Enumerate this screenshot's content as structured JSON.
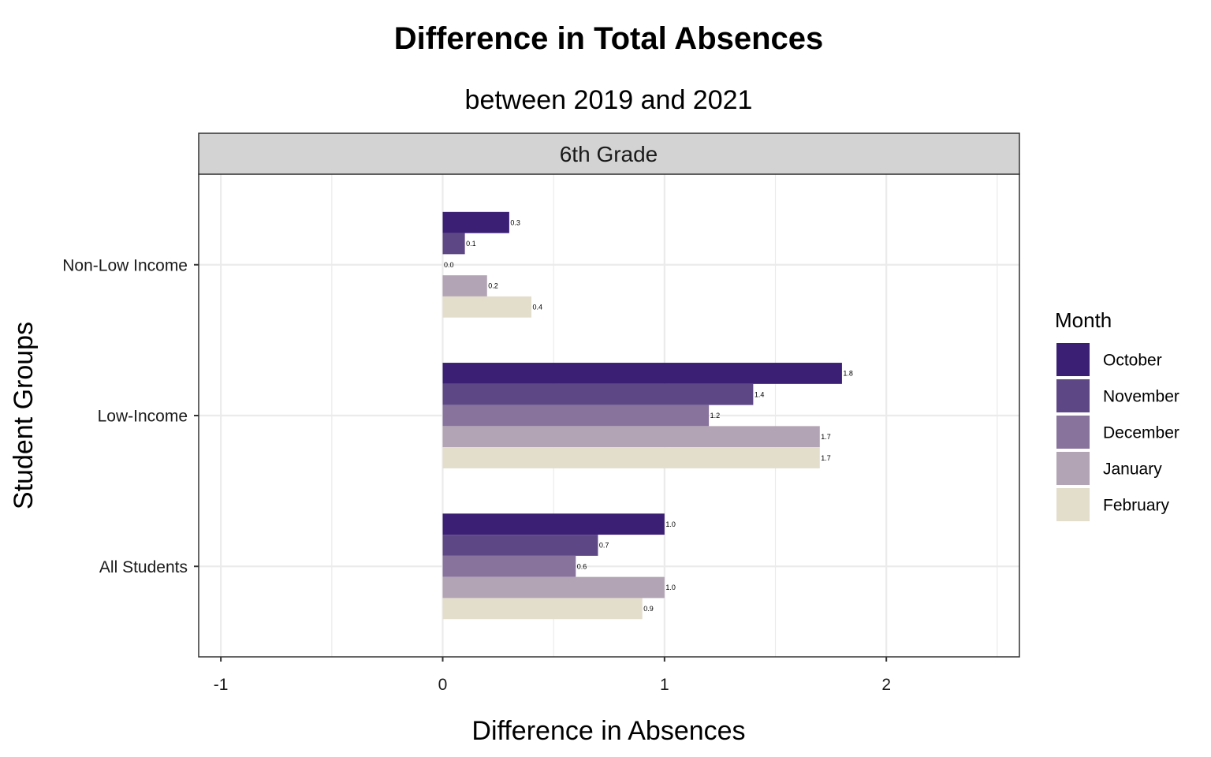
{
  "chart_data": {
    "type": "bar",
    "orientation": "horizontal",
    "title": "Difference in Total Absences",
    "subtitle": "between 2019 and 2021",
    "facet": "6th Grade",
    "xlabel": "Difference in Absences",
    "ylabel": "Student Groups",
    "xlim": [
      -1.1,
      2.6
    ],
    "x_ticks": [
      -1,
      0,
      1,
      2
    ],
    "x_tick_labels": [
      "-1",
      "0",
      "1",
      "2"
    ],
    "categories": [
      "Non-Low Income",
      "Low-Income",
      "All Students"
    ],
    "legend_title": "Month",
    "legend_position": "right",
    "grid": true,
    "series": [
      {
        "name": "October",
        "color": "#3b1f74",
        "values": [
          0.3,
          1.8,
          1.0
        ],
        "labels": [
          "0.3",
          "1.8",
          "1.0"
        ]
      },
      {
        "name": "November",
        "color": "#5e4785",
        "values": [
          0.1,
          1.4,
          0.7
        ],
        "labels": [
          "0.1",
          "1.4",
          "0.7"
        ]
      },
      {
        "name": "December",
        "color": "#88739c",
        "values": [
          0.0,
          1.2,
          0.6
        ],
        "labels": [
          "0.0",
          "1.2",
          "0.6"
        ]
      },
      {
        "name": "January",
        "color": "#b2a4b4",
        "values": [
          0.2,
          1.7,
          1.0
        ],
        "labels": [
          "0.2",
          "1.7",
          "1.0"
        ]
      },
      {
        "name": "February",
        "color": "#e3ddcc",
        "values": [
          0.4,
          1.7,
          0.9
        ],
        "labels": [
          "0.4",
          "1.7",
          "0.9"
        ]
      }
    ]
  }
}
